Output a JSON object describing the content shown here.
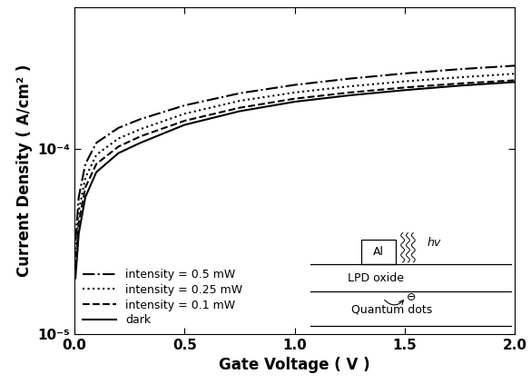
{
  "chart_data": {
    "type": "line",
    "x_label": "Gate Voltage ( V )",
    "y_label": "Current Density ( A/cm² )",
    "x": [
      0.005,
      0.02,
      0.05,
      0.1,
      0.2,
      0.3,
      0.5,
      0.75,
      1.0,
      1.25,
      1.5,
      1.75,
      2.0
    ],
    "series": [
      {
        "name": "intensity = 0.5 mW",
        "color": "#000000",
        "line_style": "dashdot",
        "values": [
          3.2e-05,
          5.5e-05,
          8.3e-05,
          0.000108,
          0.00013,
          0.000145,
          0.000172,
          0.0002,
          0.000222,
          0.00024,
          0.000256,
          0.00027,
          0.000282
        ]
      },
      {
        "name": "intensity = 0.25 mW",
        "color": "#000000",
        "line_style": "dotted",
        "values": [
          2.7e-05,
          4.6e-05,
          7e-05,
          9.3e-05,
          0.000114,
          0.000128,
          0.000155,
          0.000182,
          0.000202,
          0.000218,
          0.000232,
          0.000244,
          0.000255
        ]
      },
      {
        "name": "intensity = 0.1 mW",
        "color": "#000000",
        "line_style": "dashed",
        "values": [
          2.3e-05,
          4e-05,
          6.2e-05,
          8.3e-05,
          0.000103,
          0.000117,
          0.000142,
          0.000167,
          0.000187,
          0.000202,
          0.000215,
          0.000226,
          0.000235
        ]
      },
      {
        "name": "dark",
        "color": "#000000",
        "line_style": "solid",
        "values": [
          2e-05,
          3.5e-05,
          5.5e-05,
          7.5e-05,
          9.5e-05,
          0.000108,
          0.000135,
          0.00016,
          0.00018,
          0.000195,
          0.000208,
          0.00022,
          0.00023
        ]
      }
    ],
    "xlim": [
      0,
      2.0
    ],
    "xticks": [
      {
        "value": 0,
        "label": "0.0"
      },
      0.5,
      {
        "value": 1,
        "label": "1.0"
      },
      1.5,
      {
        "value": 2,
        "label": "2.0"
      }
    ],
    "ylim": [
      1e-05,
      0.00058
    ],
    "yticks": [
      {
        "value": 1e-05,
        "label": "10⁻⁵"
      },
      {
        "value": 0.0001,
        "label": "10⁻⁴"
      }
    ],
    "log": "y",
    "legend": "lower left",
    "inset": {
      "metal": "Al",
      "oxide": "LPD oxide",
      "layer": "Quantum dots",
      "photon": "hv",
      "electron": "⊖"
    }
  }
}
